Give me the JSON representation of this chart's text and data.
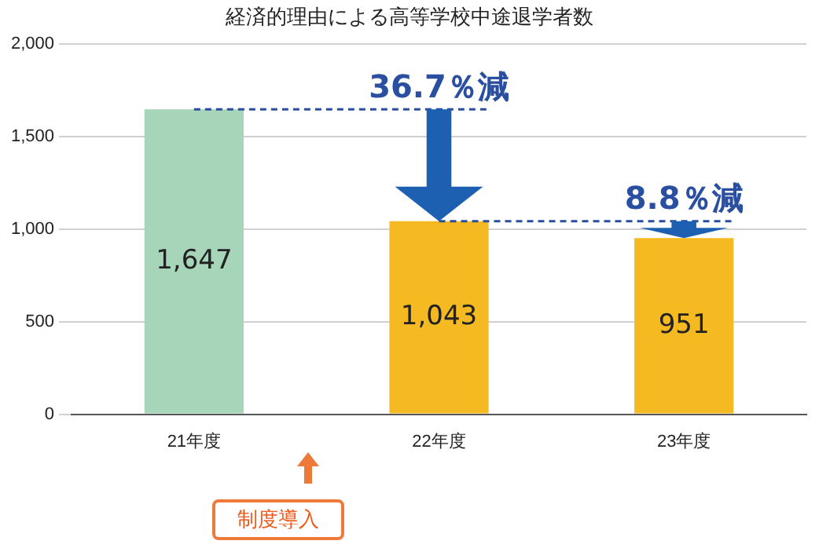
{
  "chart_data": {
    "type": "bar",
    "title": "経済的理由による高等学校中途退学者数",
    "categories": [
      "21年度",
      "22年度",
      "23年度"
    ],
    "values": [
      1647,
      1043,
      951
    ],
    "colors": [
      "#a6d5b9",
      "#f5b922",
      "#f5b922"
    ],
    "ylim": [
      0,
      2000
    ],
    "yticks": [
      {
        "value": 0,
        "label": "0"
      },
      {
        "value": 500,
        "label": "500"
      },
      {
        "value": 1000,
        "label": "1,000"
      },
      {
        "value": 1500,
        "label": "1,500"
      },
      {
        "value": 2000,
        "label": "2,000"
      }
    ],
    "grid": "y",
    "value_labels": [
      "1,647",
      "1,043",
      "951"
    ],
    "annotations": [
      "36.7％減",
      "8.8％減",
      "制度導入"
    ]
  }
}
